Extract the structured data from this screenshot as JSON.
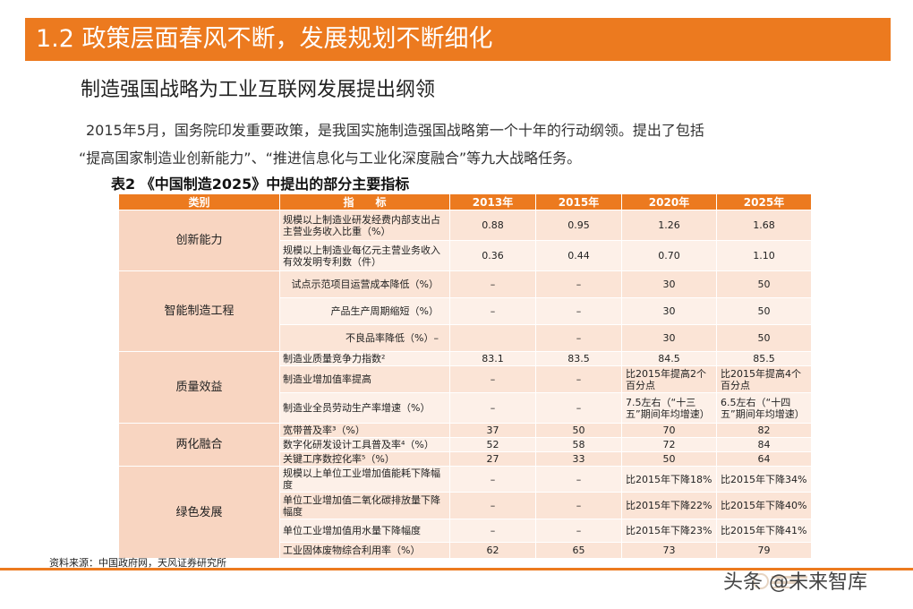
{
  "header": {
    "title": "1.2 政策层面春风不断，发展规划不断细化"
  },
  "subtitle": "制造强国战略为工业互联网发展提出纲领",
  "intro": {
    "line1": "2015年5月，国务院印发重要政策，是我国实施制造强国战略第一个十年的行动纲领。提出了包括",
    "line2": "“提高国家制造业创新能力”、“推进信息化与工业化深度融合”等九大战略任务。"
  },
  "table": {
    "caption": "表2 《中国制造2025》中提出的部分主要指标",
    "headers": [
      "类别",
      "指　　标",
      "2013年",
      "2015年",
      "2020年",
      "2025年"
    ],
    "groups": [
      {
        "category": "创新能力",
        "rows": [
          {
            "indicator": "规模以上制造业研发经费内部支出占主营业务收入比重（%）",
            "y2013": "0.88",
            "y2015": "0.95",
            "y2020": "1.26",
            "y2025": "1.68"
          },
          {
            "indicator": "规模以上制造业每亿元主营业务收入有效发明专利数（件）",
            "y2013": "0.36",
            "y2015": "0.44",
            "y2020": "0.70",
            "y2025": "1.10"
          }
        ]
      },
      {
        "category": "智能制造工程",
        "rows": [
          {
            "indicator": "试点示范项目运营成本降低（%）",
            "y2013": "–",
            "y2015": "–",
            "y2020": "30",
            "y2025": "50"
          },
          {
            "indicator": "产品生产周期缩短（%）",
            "y2013": "–",
            "y2015": "–",
            "y2020": "30",
            "y2025": "50"
          },
          {
            "indicator": "不良品率降低（%）–",
            "y2013": "",
            "y2015": "–",
            "y2020": "30",
            "y2025": "50"
          }
        ]
      },
      {
        "category": "质量效益",
        "rows": [
          {
            "indicator": "制造业质量竞争力指数²",
            "y2013": "83.1",
            "y2015": "83.5",
            "y2020": "84.5",
            "y2025": "85.5"
          },
          {
            "indicator": "制造业增加值率提高",
            "y2013": "–",
            "y2015": "–",
            "y2020": "比2015年提高2个百分点",
            "y2025": "比2015年提高4个百分点"
          },
          {
            "indicator": "制造业全员劳动生产率增速（%）",
            "y2013": "–",
            "y2015": "–",
            "y2020": "7.5左右（“十三五”期间年均增速）",
            "y2025": "6.5左右（“十四五”期间年均增速）"
          }
        ]
      },
      {
        "category": "两化融合",
        "rows": [
          {
            "indicator": "宽带普及率³（%）",
            "y2013": "37",
            "y2015": "50",
            "y2020": "70",
            "y2025": "82"
          },
          {
            "indicator": "数字化研发设计工具普及率⁴（%）",
            "y2013": "52",
            "y2015": "58",
            "y2020": "72",
            "y2025": "84"
          },
          {
            "indicator": "关键工序数控化率⁵（%）",
            "y2013": "27",
            "y2015": "33",
            "y2020": "50",
            "y2025": "64"
          }
        ]
      },
      {
        "category": "绿色发展",
        "rows": [
          {
            "indicator": "规模以上单位工业增加值能耗下降幅度",
            "y2013": "–",
            "y2015": "–",
            "y2020": "比2015年下降18%",
            "y2025": "比2015年下降34%"
          },
          {
            "indicator": "单位工业增加值二氧化碳排放量下降幅度",
            "y2013": "–",
            "y2015": "–",
            "y2020": "比2015年下降22%",
            "y2025": "比2015年下降40%"
          },
          {
            "indicator": "单位工业增加值用水量下降幅度",
            "y2013": "–",
            "y2015": "–",
            "y2020": "比2015年下降23%",
            "y2025": "比2015年下降41%"
          },
          {
            "indicator": "工业固体废物综合利用率（%）",
            "y2013": "62",
            "y2015": "65",
            "y2020": "73",
            "y2025": "79"
          }
        ]
      }
    ]
  },
  "source": "资料来源：中国政府网，天风证券研究所",
  "watermark": "头条 @未来智库",
  "colors": {
    "accent": "#ec7a1f",
    "cat_bg": "#f8d5c1",
    "row_dark": "#fbe4d6",
    "row_light": "#fdf0e8"
  }
}
